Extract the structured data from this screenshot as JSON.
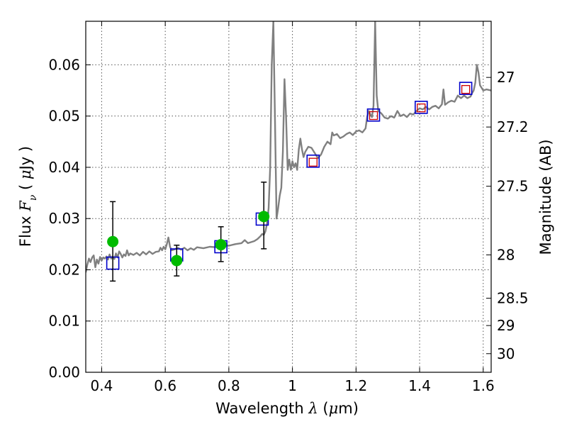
{
  "chart_data": {
    "type": "scatter",
    "title": "",
    "xlabel": "Wavelength",
    "xlabel_symbol": "λ",
    "xlabel_unit_prefix": "(",
    "xlabel_unit_mu": "μ",
    "xlabel_unit_suffix": "m)",
    "ylabel": "Flux",
    "ylabel_symbol": "F",
    "ylabel_symbol_sub": "ν",
    "ylabel_unit_prefix": "(",
    "ylabel_unit_mu": "μ",
    "ylabel_unit_suffix": "Jy )",
    "y2label": "Magnitude (AB)",
    "xlim": [
      0.35,
      1.625
    ],
    "ylim": [
      0.0,
      0.0685
    ],
    "grid": true,
    "xticks": [
      {
        "value": 0.4,
        "label": "0.4"
      },
      {
        "value": 0.6,
        "label": "0.6"
      },
      {
        "value": 0.8,
        "label": "0.8"
      },
      {
        "value": 1.0,
        "label": "1"
      },
      {
        "value": 1.2,
        "label": "1.2"
      },
      {
        "value": 1.4,
        "label": "1.4"
      },
      {
        "value": 1.6,
        "label": "1.6"
      }
    ],
    "yticks": [
      {
        "value": 0.0,
        "label": "0.00"
      },
      {
        "value": 0.01,
        "label": "0.01"
      },
      {
        "value": 0.02,
        "label": "0.02"
      },
      {
        "value": 0.03,
        "label": "0.03"
      },
      {
        "value": 0.04,
        "label": "0.04"
      },
      {
        "value": 0.05,
        "label": "0.05"
      },
      {
        "value": 0.06,
        "label": "0.06"
      }
    ],
    "y2ticks": [
      {
        "mag": 27,
        "label": "27"
      },
      {
        "mag": 27.2,
        "label": "27.2"
      },
      {
        "mag": 27.5,
        "label": "27.5"
      },
      {
        "mag": 28,
        "label": "28"
      },
      {
        "mag": 28.5,
        "label": "28.5"
      },
      {
        "mag": 29,
        "label": "29"
      },
      {
        "mag": 30,
        "label": "30"
      }
    ],
    "colors": {
      "spectrum": "#808080",
      "observed": "#00bb00",
      "model_box": "#0000cc",
      "model_inner": "#cc0000",
      "errorbar": "#000000",
      "grid": "#555555"
    },
    "series": [
      {
        "kind": "spectrum",
        "points": [
          [
            0.35,
            0.0195
          ],
          [
            0.355,
            0.021
          ],
          [
            0.36,
            0.0222
          ],
          [
            0.365,
            0.0215
          ],
          [
            0.37,
            0.0224
          ],
          [
            0.375,
            0.0228
          ],
          [
            0.38,
            0.0205
          ],
          [
            0.385,
            0.022
          ],
          [
            0.39,
            0.0212
          ],
          [
            0.395,
            0.0225
          ],
          [
            0.4,
            0.0218
          ],
          [
            0.405,
            0.0224
          ],
          [
            0.41,
            0.0222
          ],
          [
            0.415,
            0.0226
          ],
          [
            0.42,
            0.022
          ],
          [
            0.425,
            0.023
          ],
          [
            0.43,
            0.0222
          ],
          [
            0.435,
            0.0226
          ],
          [
            0.44,
            0.0221
          ],
          [
            0.445,
            0.0232
          ],
          [
            0.45,
            0.0224
          ],
          [
            0.455,
            0.0236
          ],
          [
            0.46,
            0.0231
          ],
          [
            0.465,
            0.0224
          ],
          [
            0.47,
            0.023
          ],
          [
            0.475,
            0.0227
          ],
          [
            0.48,
            0.0238
          ],
          [
            0.485,
            0.0228
          ],
          [
            0.49,
            0.0232
          ],
          [
            0.5,
            0.0229
          ],
          [
            0.51,
            0.0233
          ],
          [
            0.52,
            0.0228
          ],
          [
            0.53,
            0.0235
          ],
          [
            0.54,
            0.023
          ],
          [
            0.55,
            0.0236
          ],
          [
            0.56,
            0.0231
          ],
          [
            0.57,
            0.0235
          ],
          [
            0.58,
            0.0236
          ],
          [
            0.585,
            0.0243
          ],
          [
            0.59,
            0.0238
          ],
          [
            0.595,
            0.0245
          ],
          [
            0.6,
            0.024
          ],
          [
            0.605,
            0.025
          ],
          [
            0.61,
            0.0263
          ],
          [
            0.615,
            0.0245
          ],
          [
            0.62,
            0.0238
          ],
          [
            0.63,
            0.024
          ],
          [
            0.64,
            0.0243
          ],
          [
            0.65,
            0.0239
          ],
          [
            0.66,
            0.0243
          ],
          [
            0.67,
            0.0238
          ],
          [
            0.68,
            0.0242
          ],
          [
            0.69,
            0.0239
          ],
          [
            0.7,
            0.0244
          ],
          [
            0.72,
            0.0242
          ],
          [
            0.74,
            0.0245
          ],
          [
            0.76,
            0.0244
          ],
          [
            0.78,
            0.0248
          ],
          [
            0.8,
            0.0247
          ],
          [
            0.82,
            0.025
          ],
          [
            0.84,
            0.0252
          ],
          [
            0.85,
            0.0258
          ],
          [
            0.86,
            0.0252
          ],
          [
            0.88,
            0.0256
          ],
          [
            0.89,
            0.026
          ],
          [
            0.9,
            0.0266
          ],
          [
            0.905,
            0.027
          ],
          [
            0.91,
            0.0268
          ],
          [
            0.915,
            0.0275
          ],
          [
            0.92,
            0.029
          ],
          [
            0.925,
            0.032
          ],
          [
            0.93,
            0.04
          ],
          [
            0.935,
            0.06
          ],
          [
            0.94,
            0.0685
          ],
          [
            0.945,
            0.05
          ],
          [
            0.95,
            0.03
          ],
          [
            0.955,
            0.032
          ],
          [
            0.96,
            0.0345
          ],
          [
            0.965,
            0.036
          ],
          [
            0.97,
            0.043
          ],
          [
            0.975,
            0.0572
          ],
          [
            0.98,
            0.05
          ],
          [
            0.985,
            0.0395
          ],
          [
            0.99,
            0.0415
          ],
          [
            0.995,
            0.0395
          ],
          [
            1.0,
            0.0412
          ],
          [
            1.005,
            0.04
          ],
          [
            1.01,
            0.0408
          ],
          [
            1.015,
            0.0395
          ],
          [
            1.02,
            0.0435
          ],
          [
            1.025,
            0.0456
          ],
          [
            1.03,
            0.0435
          ],
          [
            1.035,
            0.042
          ],
          [
            1.04,
            0.043
          ],
          [
            1.05,
            0.044
          ],
          [
            1.06,
            0.0438
          ],
          [
            1.07,
            0.0428
          ],
          [
            1.08,
            0.0418
          ],
          [
            1.09,
            0.0425
          ],
          [
            1.1,
            0.044
          ],
          [
            1.11,
            0.045
          ],
          [
            1.12,
            0.0445
          ],
          [
            1.125,
            0.0468
          ],
          [
            1.13,
            0.0462
          ],
          [
            1.14,
            0.0465
          ],
          [
            1.15,
            0.0457
          ],
          [
            1.16,
            0.046
          ],
          [
            1.17,
            0.0465
          ],
          [
            1.18,
            0.0468
          ],
          [
            1.19,
            0.0463
          ],
          [
            1.2,
            0.047
          ],
          [
            1.21,
            0.0472
          ],
          [
            1.22,
            0.0468
          ],
          [
            1.23,
            0.0476
          ],
          [
            1.235,
            0.0498
          ],
          [
            1.24,
            0.051
          ],
          [
            1.245,
            0.0503
          ],
          [
            1.25,
            0.0498
          ],
          [
            1.255,
            0.052
          ],
          [
            1.26,
            0.0685
          ],
          [
            1.265,
            0.054
          ],
          [
            1.27,
            0.051
          ],
          [
            1.28,
            0.0505
          ],
          [
            1.29,
            0.0497
          ],
          [
            1.3,
            0.0495
          ],
          [
            1.31,
            0.05
          ],
          [
            1.32,
            0.0497
          ],
          [
            1.33,
            0.051
          ],
          [
            1.34,
            0.05
          ],
          [
            1.35,
            0.0503
          ],
          [
            1.36,
            0.0498
          ],
          [
            1.37,
            0.0505
          ],
          [
            1.38,
            0.0503
          ],
          [
            1.39,
            0.051
          ],
          [
            1.4,
            0.0515
          ],
          [
            1.41,
            0.0513
          ],
          [
            1.42,
            0.0518
          ],
          [
            1.43,
            0.0513
          ],
          [
            1.44,
            0.0518
          ],
          [
            1.45,
            0.052
          ],
          [
            1.46,
            0.0515
          ],
          [
            1.47,
            0.0523
          ],
          [
            1.475,
            0.0552
          ],
          [
            1.48,
            0.0522
          ],
          [
            1.49,
            0.0527
          ],
          [
            1.5,
            0.053
          ],
          [
            1.51,
            0.0528
          ],
          [
            1.52,
            0.054
          ],
          [
            1.53,
            0.0535
          ],
          [
            1.54,
            0.054
          ],
          [
            1.55,
            0.0535
          ],
          [
            1.56,
            0.0538
          ],
          [
            1.565,
            0.0545
          ],
          [
            1.57,
            0.055
          ],
          [
            1.575,
            0.0565
          ],
          [
            1.58,
            0.06
          ],
          [
            1.585,
            0.0585
          ],
          [
            1.59,
            0.056
          ],
          [
            1.6,
            0.055
          ],
          [
            1.61,
            0.0552
          ],
          [
            1.625,
            0.055
          ]
        ]
      },
      {
        "kind": "observed",
        "points": [
          {
            "x": 0.435,
            "y": 0.0255,
            "yerr_low": 0.0178,
            "yerr_high": 0.0333
          },
          {
            "x": 0.636,
            "y": 0.0218,
            "yerr_low": 0.0188,
            "yerr_high": 0.0248
          },
          {
            "x": 0.775,
            "y": 0.0249,
            "yerr_low": 0.0216,
            "yerr_high": 0.0284
          },
          {
            "x": 0.91,
            "y": 0.0304,
            "yerr_low": 0.0241,
            "yerr_high": 0.0371
          }
        ]
      },
      {
        "kind": "model_box",
        "points": [
          {
            "x": 0.435,
            "y": 0.0213
          },
          {
            "x": 0.636,
            "y": 0.0229
          },
          {
            "x": 0.775,
            "y": 0.0245
          },
          {
            "x": 0.905,
            "y": 0.0299
          },
          {
            "x": 1.065,
            "y": 0.0412
          },
          {
            "x": 1.255,
            "y": 0.0502
          },
          {
            "x": 1.405,
            "y": 0.0517
          },
          {
            "x": 1.545,
            "y": 0.0554
          }
        ]
      },
      {
        "kind": "model_inner",
        "points": [
          {
            "x": 1.065,
            "y": 0.041
          },
          {
            "x": 1.255,
            "y": 0.0501
          },
          {
            "x": 1.405,
            "y": 0.0516
          },
          {
            "x": 1.545,
            "y": 0.0552
          }
        ]
      }
    ]
  }
}
